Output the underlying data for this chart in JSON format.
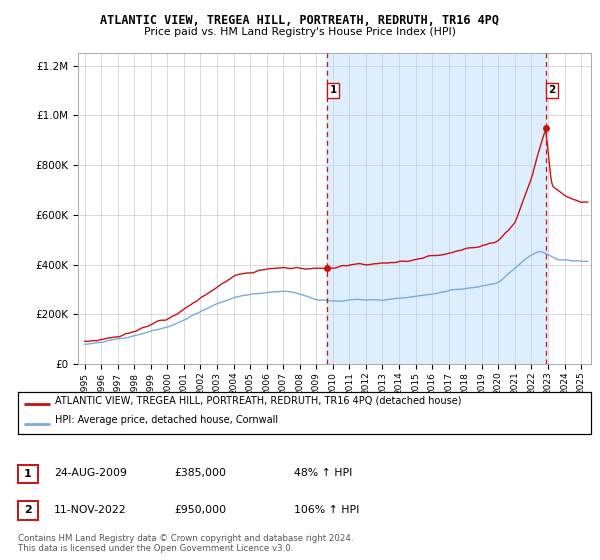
{
  "title": "ATLANTIC VIEW, TREGEA HILL, PORTREATH, REDRUTH, TR16 4PQ",
  "subtitle": "Price paid vs. HM Land Registry's House Price Index (HPI)",
  "hpi_label": "HPI: Average price, detached house, Cornwall",
  "property_label": "ATLANTIC VIEW, TREGEA HILL, PORTREATH, REDRUTH, TR16 4PQ (detached house)",
  "sale1_date": "24-AUG-2009",
  "sale1_price": 385000,
  "sale1_pct": "48%",
  "sale2_date": "11-NOV-2022",
  "sale2_price": 950000,
  "sale2_pct": "106%",
  "footnote": "Contains HM Land Registry data © Crown copyright and database right 2024.\nThis data is licensed under the Open Government Licence v3.0.",
  "hpi_color": "#7aabdb",
  "property_color": "#cc1111",
  "shade_color": "#ddeeff",
  "sale_vline_color": "#cc1111",
  "background_color": "#ffffff",
  "ylim": [
    0,
    1250000
  ],
  "xlim_start": 1994.6,
  "xlim_end": 2025.6,
  "sale1_x": 2009.646,
  "sale2_x": 2022.868
}
